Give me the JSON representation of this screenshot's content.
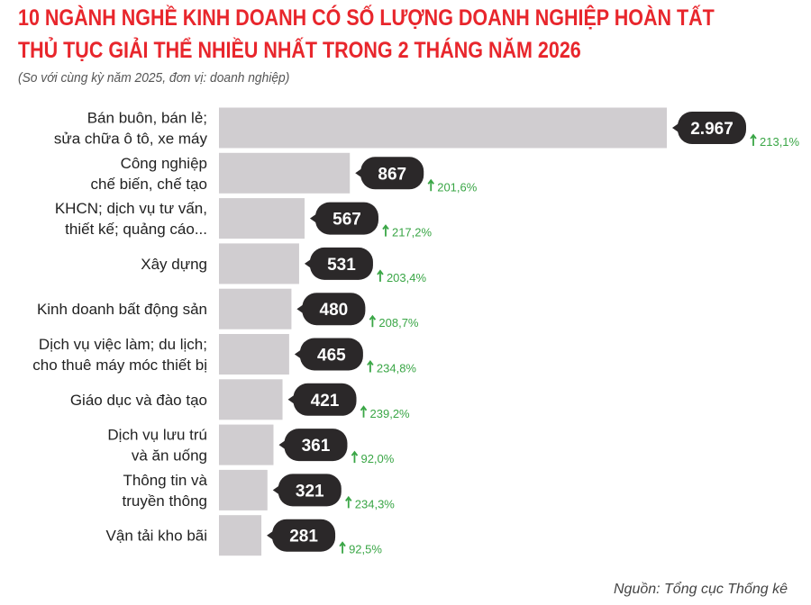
{
  "chart_data": {
    "type": "bar",
    "orientation": "horizontal",
    "title_line1": "10 NGÀNH NGHỀ KINH DOANH CÓ SỐ LƯỢNG DOANH NGHIỆP HOÀN TẤT",
    "title_line2": "THỦ TỤC GIẢI THỂ NHIỀU NHẤT TRONG 2 THÁNG NĂM 2026",
    "subtitle": "(So với cùng kỳ năm 2025, đơn vị: doanh nghiệp)",
    "source": "Nguồn: Tổng cục Thống kê",
    "categories": [
      [
        "Bán buôn, bán lẻ;",
        "sửa chữa ô tô, xe máy"
      ],
      [
        "Công nghiệp",
        "chế biến, chế tạo"
      ],
      [
        "KHCN; dịch vụ tư vấn,",
        "thiết kế; quảng cáo..."
      ],
      [
        "Xây dựng"
      ],
      [
        "Kinh doanh bất động sản"
      ],
      [
        "Dịch vụ việc làm; du lịch;",
        "cho thuê máy móc thiết bị"
      ],
      [
        "Giáo dục và đào tạo"
      ],
      [
        "Dịch vụ lưu trú",
        "và ăn uống"
      ],
      [
        "Thông tin và",
        "truyền thông"
      ],
      [
        "Vận tải kho bãi"
      ]
    ],
    "values": [
      2967,
      867,
      567,
      531,
      480,
      465,
      421,
      361,
      321,
      281
    ],
    "value_labels": [
      "2.967",
      "867",
      "567",
      "531",
      "480",
      "465",
      "421",
      "361",
      "321",
      "281"
    ],
    "change_labels": [
      "213,1%",
      "201,6%",
      "217,2%",
      "203,4%",
      "208,7%",
      "234,8%",
      "239,2%",
      "92,0%",
      "234,3%",
      "92,5%"
    ],
    "change_direction": "up",
    "colors": {
      "bar": "#d0cdd0",
      "bubble": "#2b2829",
      "change": "#3aa646",
      "title": "#e8262c"
    },
    "grid": false
  }
}
